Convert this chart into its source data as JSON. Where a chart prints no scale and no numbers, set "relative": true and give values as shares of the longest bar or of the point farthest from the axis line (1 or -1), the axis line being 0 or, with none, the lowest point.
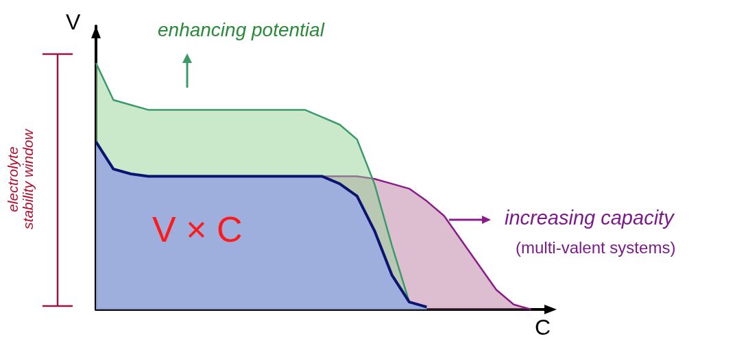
{
  "chart_data": {
    "type": "area",
    "relative": true,
    "xlabel": "C",
    "ylabel": "V",
    "categories": [
      null,
      null,
      null,
      null,
      null,
      null,
      null,
      null,
      null,
      null,
      null,
      null,
      null,
      null,
      null,
      null,
      null,
      null,
      null,
      null,
      null,
      null,
      null,
      null,
      null,
      null,
      null
    ],
    "series": [
      {
        "color": "#8b1a8b",
        "values": [
          0.68,
          0.57,
          0.55,
          0.54,
          0.54,
          0.54,
          0.54,
          0.54,
          0.54,
          0.54,
          0.54,
          0.54,
          0.54,
          0.54,
          0.54,
          0.54,
          0.53,
          0.51,
          0.49,
          0.44,
          0.38,
          0.28,
          0.18,
          0.08,
          0.02,
          0,
          null
        ]
      },
      {
        "color": "#3a9a6a",
        "values": [
          1,
          0.85,
          0.83,
          0.81,
          0.81,
          0.81,
          0.81,
          0.81,
          0.81,
          0.81,
          0.81,
          0.81,
          0.81,
          0.78,
          0.75,
          0.69,
          0.51,
          0.26,
          0.03,
          0.01,
          null,
          null,
          null,
          null,
          null,
          null,
          null
        ]
      },
      {
        "color": "#0b1470",
        "values": [
          0.68,
          0.57,
          0.55,
          0.54,
          0.54,
          0.54,
          0.54,
          0.54,
          0.54,
          0.54,
          0.54,
          0.54,
          0.54,
          0.54,
          0.51,
          0.46,
          0.32,
          0.14,
          0.03,
          0.01,
          null,
          null,
          null,
          null,
          null,
          null,
          null
        ]
      }
    ],
    "annotations": [
      "enhancing potential",
      "increasing  capacity",
      "(multi-valent systems)",
      "V × C",
      "electrolyte stability window"
    ],
    "grid": false,
    "marker": "none",
    "line_style": "solid"
  }
}
